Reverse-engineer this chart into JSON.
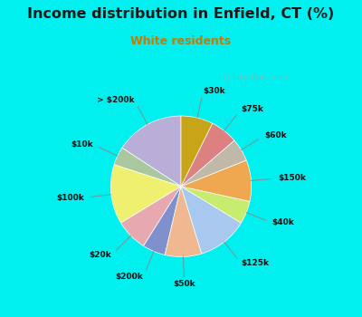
{
  "title": "Income distribution in Enfield, CT (%)",
  "subtitle": "White residents",
  "title_color": "#1a1a1a",
  "subtitle_color": "#cc7700",
  "background_color": "#00efef",
  "chart_bg_color": "#ddf0e8",
  "labels": [
    "> $200k",
    "$10k",
    "$100k",
    "$20k",
    "$200k",
    "$50k",
    "$125k",
    "$40k",
    "$150k",
    "$60k",
    "$75k",
    "$30k"
  ],
  "values": [
    15,
    4,
    13,
    7,
    5,
    8,
    11,
    5,
    9,
    5,
    6,
    7
  ],
  "colors": [
    "#b8aed8",
    "#aac8a0",
    "#f0f070",
    "#e8a8b0",
    "#8090cc",
    "#f0b890",
    "#a8c8f0",
    "#c8ec70",
    "#f0a850",
    "#c0b8a8",
    "#dd8080",
    "#c8a418"
  ],
  "startangle": 90,
  "watermark": "Ⓜ City-Data.com"
}
